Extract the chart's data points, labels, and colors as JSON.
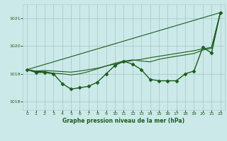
{
  "background_color": "#cce9e9",
  "grid_color": "#aacccc",
  "line_color": "#1a5c1a",
  "title": "Graphe pression niveau de la mer (hPa)",
  "xlim": [
    -0.5,
    22.5
  ],
  "ylim": [
    1017.7,
    1021.5
  ],
  "yticks": [
    1018,
    1019,
    1020,
    1021
  ],
  "xticks": [
    0,
    1,
    2,
    3,
    4,
    5,
    6,
    7,
    8,
    9,
    10,
    11,
    12,
    13,
    14,
    15,
    16,
    17,
    18,
    19,
    20,
    21,
    22
  ],
  "series": [
    {
      "x": [
        0,
        1,
        2,
        3,
        4,
        5,
        6,
        7,
        8,
        9,
        10,
        11,
        12,
        13,
        14,
        15,
        16,
        17,
        18,
        19,
        20,
        21,
        22
      ],
      "y": [
        1019.15,
        1019.05,
        1019.05,
        1019.0,
        1018.65,
        1018.45,
        1018.5,
        1018.55,
        1018.7,
        1019.0,
        1019.3,
        1019.45,
        1019.35,
        1019.15,
        1018.8,
        1018.75,
        1018.75,
        1018.75,
        1019.0,
        1019.1,
        1019.95,
        1019.75,
        1021.2
      ],
      "marker": "D",
      "markersize": 2.5,
      "linewidth": 1.0
    },
    {
      "x": [
        0,
        22
      ],
      "y": [
        1019.15,
        1021.2
      ],
      "marker": null,
      "markersize": 0,
      "linewidth": 0.8
    },
    {
      "x": [
        0,
        1,
        2,
        3,
        4,
        5,
        6,
        7,
        8,
        9,
        10,
        11,
        12,
        13,
        14,
        15,
        16,
        17,
        18,
        19,
        20,
        21,
        22
      ],
      "y": [
        1019.15,
        1019.1,
        1019.12,
        1019.1,
        1019.08,
        1019.06,
        1019.1,
        1019.15,
        1019.2,
        1019.28,
        1019.35,
        1019.42,
        1019.48,
        1019.52,
        1019.58,
        1019.63,
        1019.68,
        1019.73,
        1019.78,
        1019.83,
        1019.9,
        1019.95,
        1021.2
      ],
      "marker": null,
      "markersize": 0,
      "linewidth": 0.8
    },
    {
      "x": [
        0,
        1,
        2,
        3,
        4,
        5,
        6,
        7,
        8,
        9,
        10,
        11,
        12,
        13,
        14,
        15,
        16,
        17,
        18,
        19,
        20,
        21,
        22
      ],
      "y": [
        1019.15,
        1019.08,
        1019.08,
        1019.02,
        1019.0,
        1018.96,
        1019.0,
        1019.08,
        1019.18,
        1019.28,
        1019.38,
        1019.46,
        1019.5,
        1019.46,
        1019.43,
        1019.52,
        1019.58,
        1019.63,
        1019.68,
        1019.73,
        1019.85,
        1019.92,
        1021.2
      ],
      "marker": null,
      "markersize": 0,
      "linewidth": 0.8
    }
  ]
}
